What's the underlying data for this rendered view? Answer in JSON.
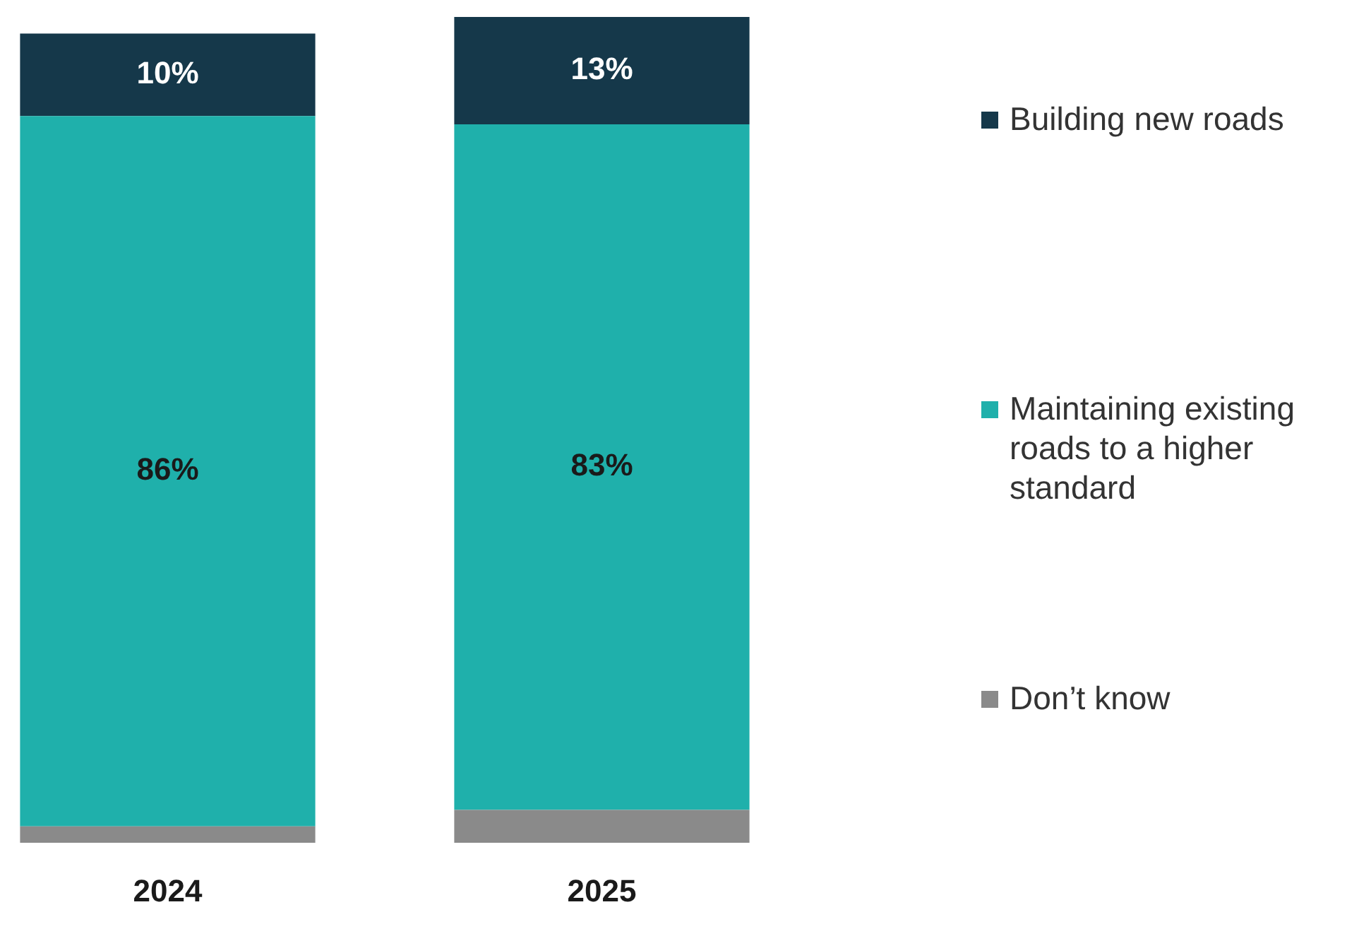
{
  "chart_data": {
    "type": "bar",
    "stacked": true,
    "categories": [
      "2024",
      "2025"
    ],
    "legend": "right",
    "grid": false,
    "series": [
      {
        "name": "Don’t know",
        "color": "#8a8a8a",
        "values": [
          2,
          4
        ],
        "value_labels": [
          null,
          null
        ]
      },
      {
        "name": "Maintaining existing roads to a higher standard",
        "color": "#1fb0ab",
        "values": [
          86,
          83
        ],
        "value_labels": [
          "86%",
          "83%"
        ]
      },
      {
        "name": "Building new roads",
        "color": "#15384a",
        "values": [
          10,
          13
        ],
        "value_labels": [
          "10%",
          "13%"
        ]
      }
    ]
  }
}
